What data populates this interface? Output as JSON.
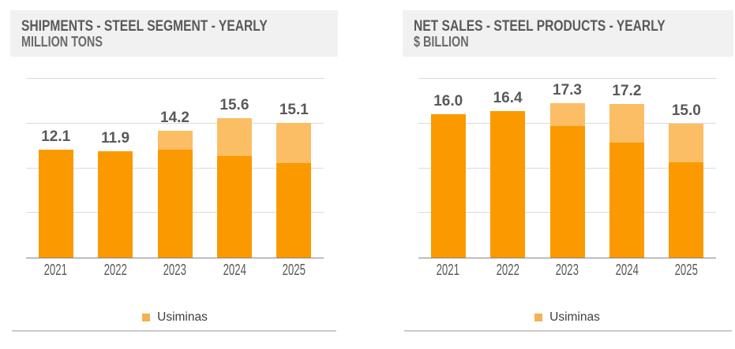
{
  "styles": {
    "title_bg": "#F1F1F1",
    "title_color": "#595959",
    "label_color": "#595959",
    "axis_color": "#848484",
    "gridline_color": "#DBDBDB",
    "divider_color": "#CBCBCB",
    "dark_orange": "#FA9A00",
    "light_orange": "#FBBE64"
  },
  "chart_data": [
    {
      "type": "bar",
      "stacked": true,
      "title": "SHIPMENTS - STEEL SEGMENT - YEARLY",
      "subtitle": "MILLION TONS",
      "categories": [
        "2021",
        "2022",
        "2023",
        "2024",
        "2025"
      ],
      "totals": [
        12.1,
        11.9,
        14.2,
        15.6,
        15.1
      ],
      "data_labels": [
        "12.1",
        "11.9",
        "14.2",
        "15.6",
        "15.1"
      ],
      "series": [
        {
          "name": "",
          "color": "#FA9A00",
          "values": [
            12.1,
            11.9,
            12.1,
            11.4,
            10.6
          ]
        },
        {
          "name": "Usiminas",
          "color": "#FBBE64",
          "values": [
            0,
            0,
            2.1,
            4.2,
            4.5
          ]
        }
      ],
      "ylim": [
        0,
        20
      ],
      "gridline_step": 5,
      "grid": true,
      "legend": {
        "label": "Usiminas",
        "color": "#F6B152",
        "position": "bottom-center"
      }
    },
    {
      "type": "bar",
      "stacked": true,
      "title": "NET SALES - STEEL PRODUCTS - YEARLY",
      "subtitle": "$ BILLION",
      "categories": [
        "2021",
        "2022",
        "2023",
        "2024",
        "2025"
      ],
      "totals": [
        16.0,
        16.4,
        17.3,
        17.2,
        15.0
      ],
      "data_labels": [
        "16.0",
        "16.4",
        "17.3",
        "17.2",
        "15.0"
      ],
      "series": [
        {
          "name": "",
          "color": "#FA9A00",
          "values": [
            16.0,
            16.4,
            14.7,
            12.9,
            10.7
          ]
        },
        {
          "name": "Usiminas",
          "color": "#FBBE64",
          "values": [
            0,
            0,
            2.6,
            4.3,
            4.3
          ]
        }
      ],
      "ylim": [
        0,
        20
      ],
      "gridline_step": 5,
      "grid": true,
      "legend": {
        "label": "Usiminas",
        "color": "#F6B152",
        "position": "bottom-center"
      }
    }
  ]
}
